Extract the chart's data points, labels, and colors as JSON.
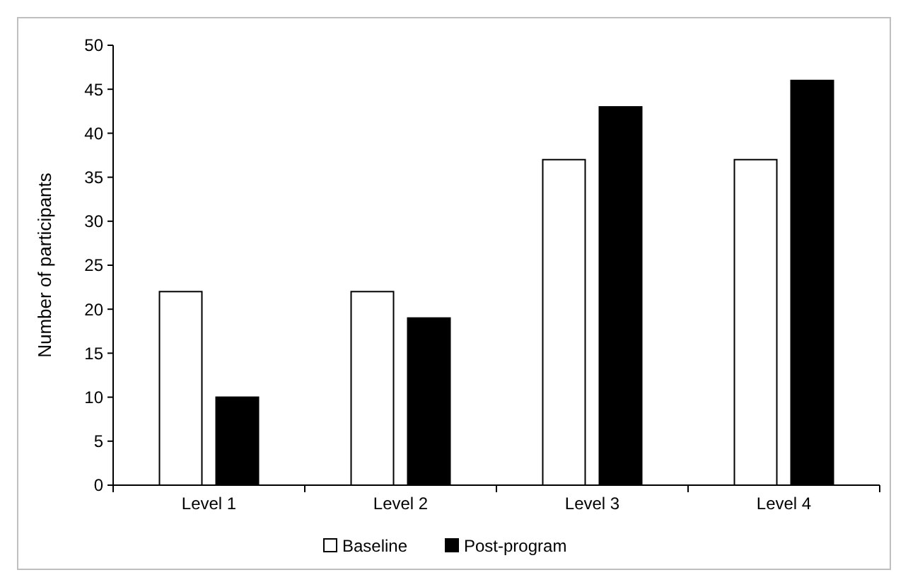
{
  "chart_data": {
    "type": "bar",
    "ylabel": "Number of participants",
    "categories": [
      "Level 1",
      "Level 2",
      "Level 3",
      "Level 4"
    ],
    "series": [
      {
        "name": "Baseline",
        "color": "#ffffff",
        "values": [
          22,
          22,
          37,
          37
        ]
      },
      {
        "name": "Post-program",
        "color": "#000000",
        "values": [
          10,
          19,
          43,
          46
        ]
      }
    ],
    "ylim": [
      0,
      50
    ],
    "yticks": [
      0,
      5,
      10,
      15,
      20,
      25,
      30,
      35,
      40,
      45,
      50
    ],
    "grid": false,
    "legend": "bottom"
  }
}
